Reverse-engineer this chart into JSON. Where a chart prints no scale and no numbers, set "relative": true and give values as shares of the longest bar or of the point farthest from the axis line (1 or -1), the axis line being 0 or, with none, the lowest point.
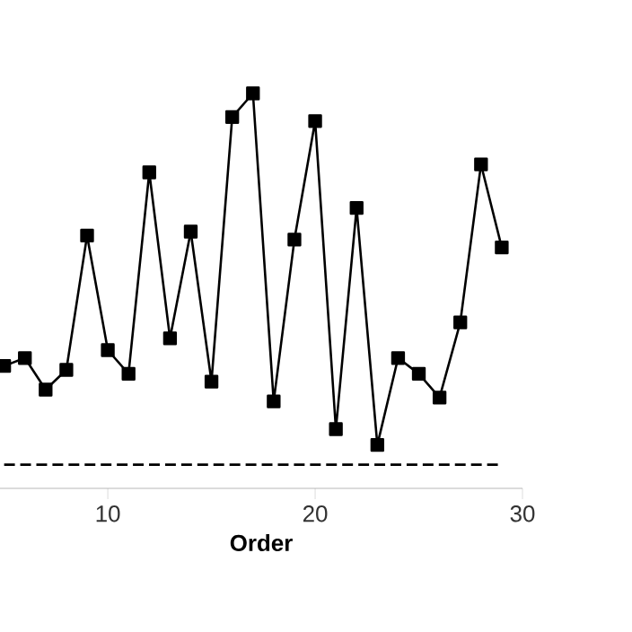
{
  "chart_data": {
    "type": "line",
    "xlabel": "Order",
    "relative": true,
    "marker": "square",
    "xlim": [
      4.8,
      30
    ],
    "xticks": [
      10,
      20,
      30
    ],
    "tick_labels": "x",
    "grid": false,
    "series": [
      {
        "color": "#000000",
        "x": [
          5,
          6,
          7,
          8,
          9,
          10,
          11,
          12,
          13,
          14,
          15,
          16,
          17,
          18,
          19,
          20,
          21,
          22,
          23,
          24,
          25,
          26,
          27,
          28,
          29
        ],
        "values": [
          0.31,
          0.33,
          0.25,
          0.3,
          0.64,
          0.35,
          0.29,
          0.8,
          0.38,
          0.65,
          0.27,
          0.94,
          1,
          0.22,
          0.63,
          0.93,
          0.15,
          0.71,
          0.11,
          0.33,
          0.29,
          0.23,
          0.42,
          0.82,
          0.61
        ]
      },
      {
        "color": "#000000",
        "line_style": "dashed",
        "marker": "none",
        "x": [
          5,
          7,
          9,
          11,
          13,
          15,
          17,
          19,
          21,
          23,
          25,
          27,
          29
        ],
        "values": [
          0.06,
          0.06,
          0.06,
          0.06,
          0.06,
          0.06,
          0.06,
          0.06,
          0.06,
          0.06,
          0.06,
          0.06,
          0.06
        ]
      }
    ]
  }
}
